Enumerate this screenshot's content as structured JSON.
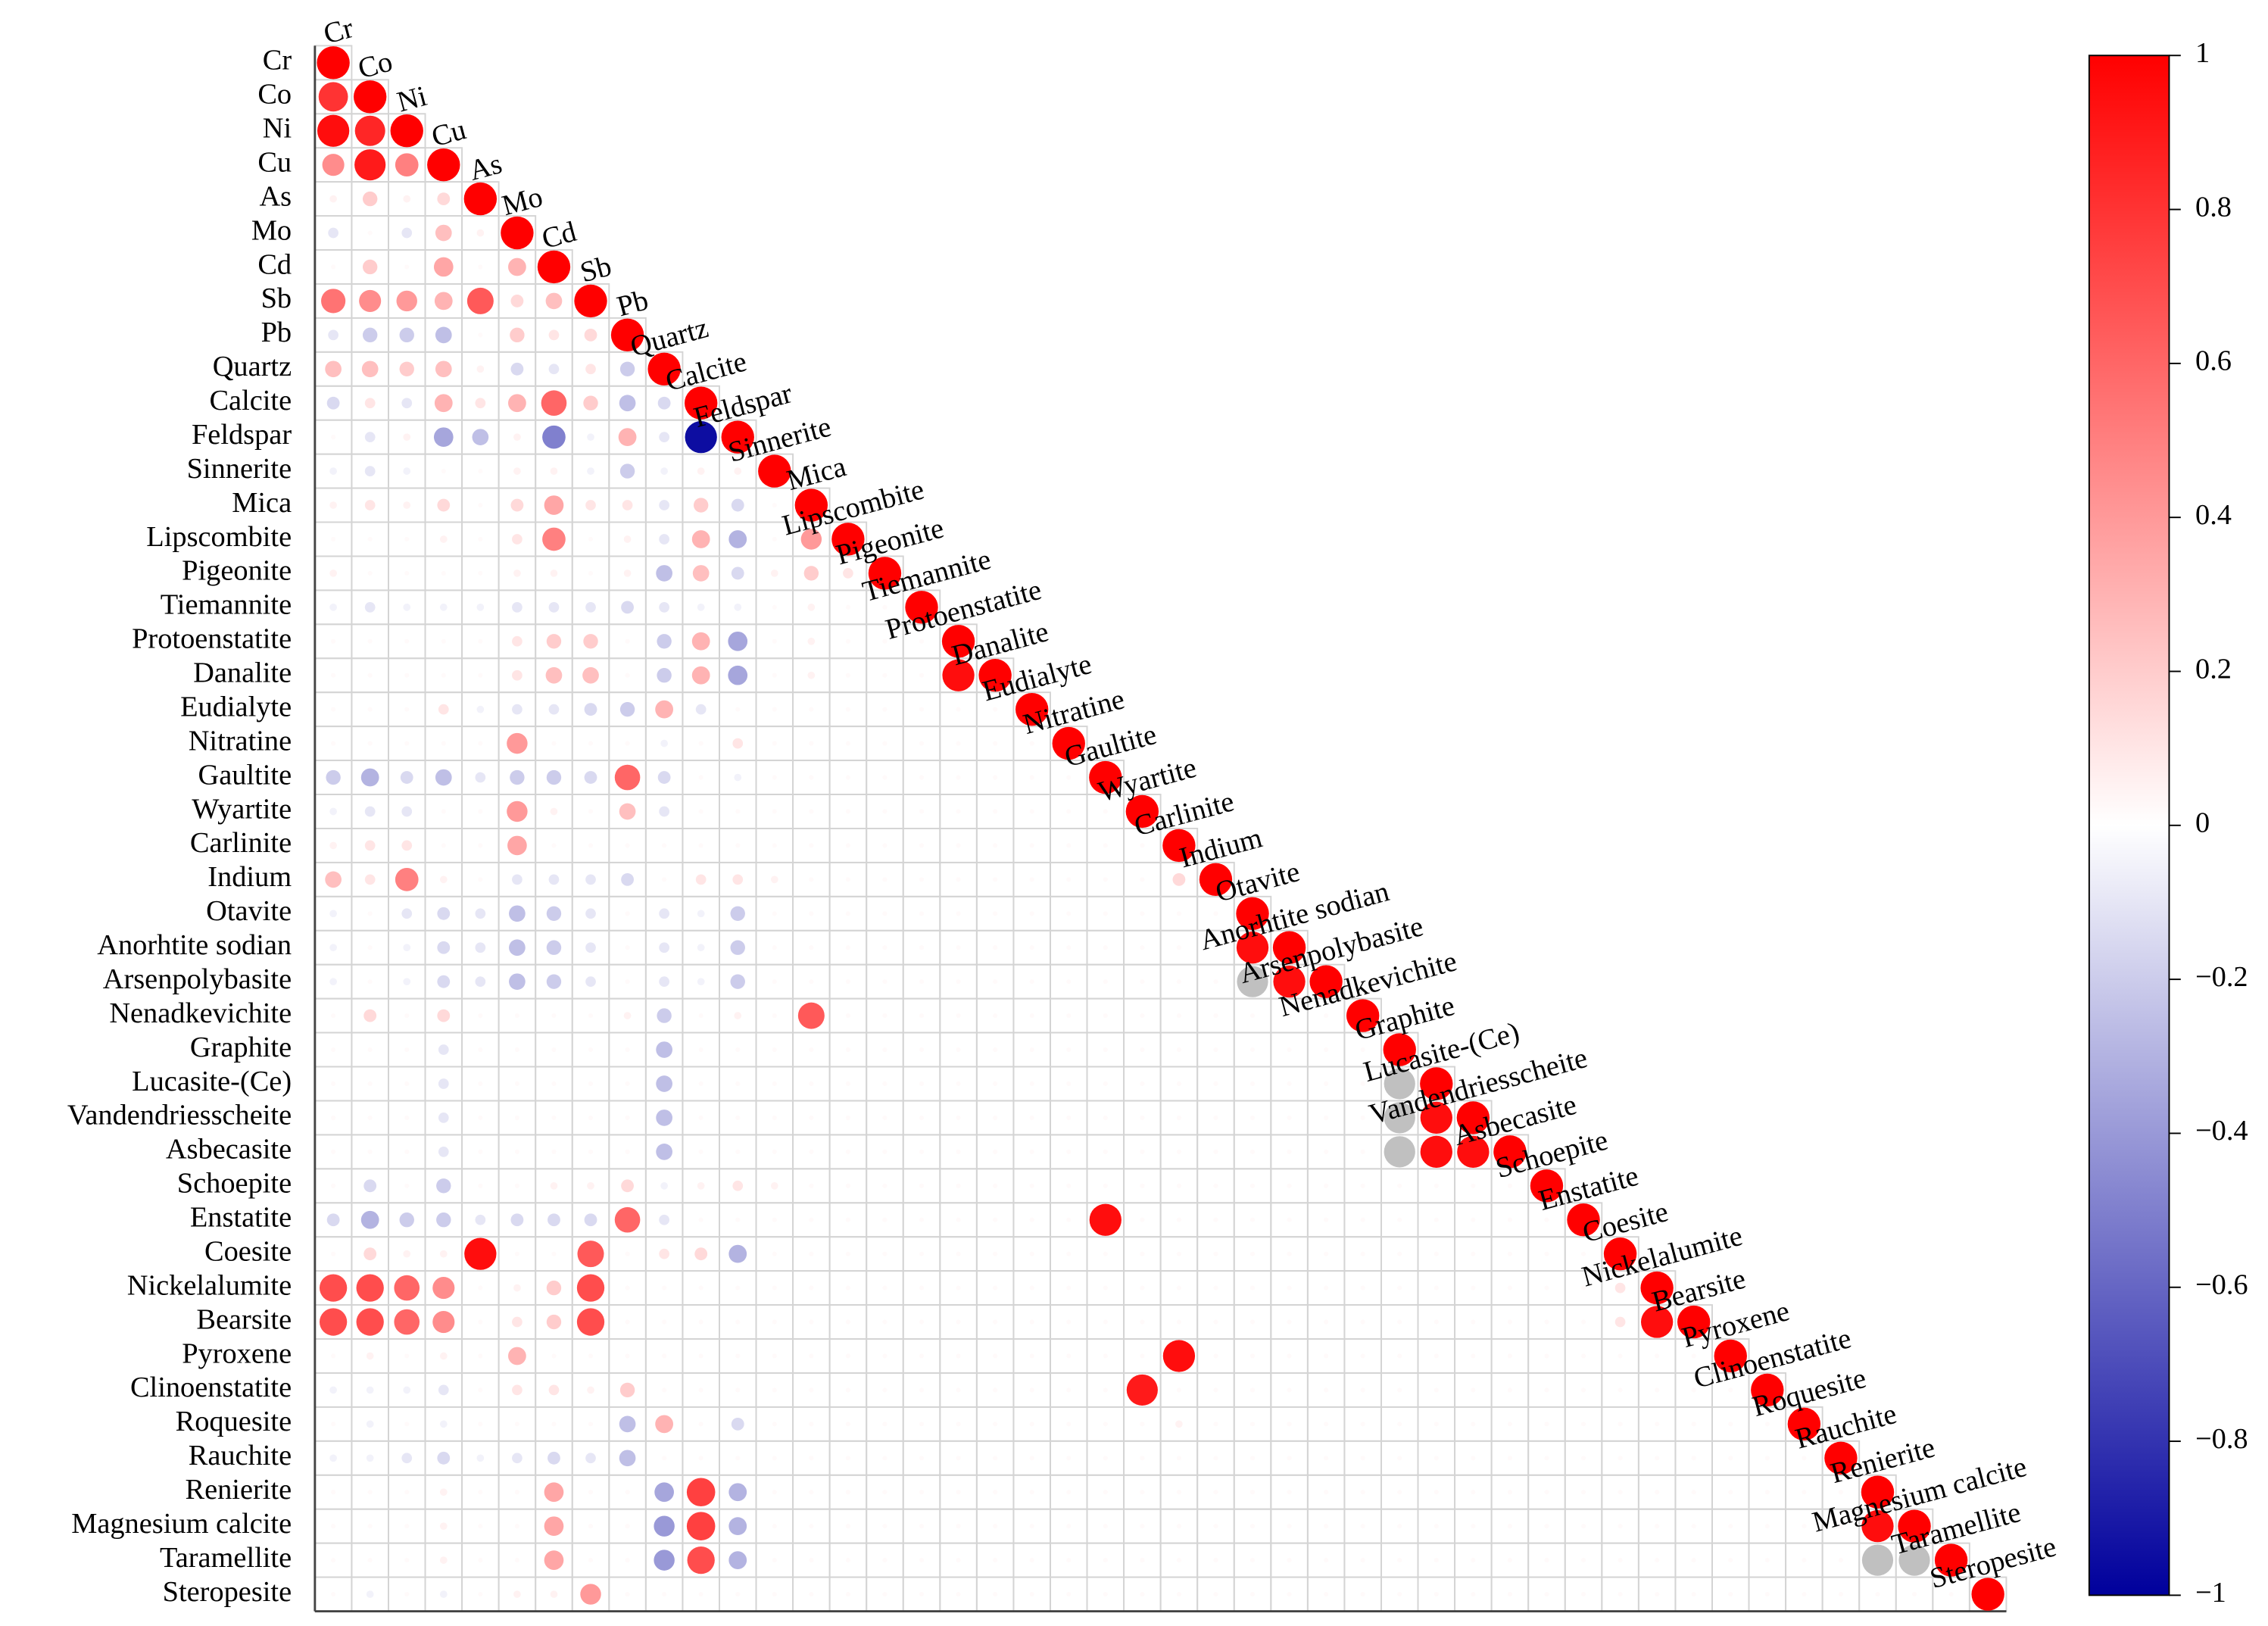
{
  "chart_data": {
    "type": "correlation",
    "variables": [
      "Cr",
      "Co",
      "Ni",
      "Cu",
      "As",
      "Mo",
      "Cd",
      "Sb",
      "Pb",
      "Quartz",
      "Calcite",
      "Feldspar",
      "Sinnerite",
      "Mica",
      "Lipscombite",
      "Pigeonite",
      "Tiemannite",
      "Protoenstatite",
      "Danalite",
      "Eudialyte",
      "Nitratine",
      "Gaultite",
      "Wyartite",
      "Carlinite",
      "Indium",
      "Otavite",
      "Anorhtite sodian",
      "Arsenpolybasite",
      "Nenadkevichite",
      "Graphite",
      "Lucasite-(Ce)",
      "Vandendriesscheite",
      "Asbecasite",
      "Schoepite",
      "Enstatite",
      "Coesite",
      "Nickelalumite",
      "Bearsite",
      "Pyroxene",
      "Clinoenstatite",
      "Roquesite",
      "Rauchite",
      "Renierite",
      "Magnesium calcite",
      "Taramellite",
      "Steropesite"
    ],
    "matrix": [
      [
        1
      ],
      [
        0.8,
        1
      ],
      [
        0.95,
        0.85,
        1
      ],
      [
        0.45,
        0.9,
        0.5,
        1
      ],
      [
        0.05,
        0.2,
        0.05,
        0.15,
        1
      ],
      [
        -0.1,
        0.02,
        -0.1,
        0.25,
        0.05,
        1
      ],
      [
        0.02,
        0.2,
        0.02,
        0.35,
        0.02,
        0.3,
        1
      ],
      [
        0.55,
        0.45,
        0.4,
        0.3,
        0.65,
        0.15,
        0.25,
        1
      ],
      [
        -0.1,
        -0.2,
        -0.2,
        -0.25,
        0.02,
        0.2,
        0.1,
        0.15,
        1
      ],
      [
        0.25,
        0.25,
        0.2,
        0.25,
        0.05,
        -0.15,
        -0.1,
        0.1,
        -0.2,
        1
      ],
      [
        -0.15,
        0.1,
        -0.1,
        0.3,
        0.1,
        0.3,
        0.6,
        0.2,
        -0.25,
        -0.15,
        1
      ],
      [
        0.02,
        -0.1,
        0.05,
        -0.35,
        -0.25,
        0.05,
        -0.5,
        -0.05,
        0.3,
        -0.1,
        -0.95,
        1
      ],
      [
        -0.05,
        -0.1,
        -0.05,
        0.02,
        0.02,
        0.05,
        0.05,
        -0.05,
        -0.2,
        -0.05,
        0.05,
        0.05,
        1
      ],
      [
        0.05,
        0.1,
        0.05,
        0.15,
        0.02,
        0.15,
        0.35,
        0.1,
        0.1,
        -0.1,
        0.2,
        -0.15,
        0.02,
        1
      ],
      [
        0.02,
        0.02,
        0.02,
        0.05,
        0.02,
        0.1,
        0.5,
        0.02,
        0.05,
        -0.1,
        0.3,
        -0.3,
        0.02,
        0.4,
        1
      ],
      [
        0.05,
        0.02,
        0.02,
        0.02,
        0.02,
        0.05,
        0.05,
        0.02,
        0.05,
        -0.25,
        0.25,
        -0.15,
        0.05,
        0.2,
        0.1,
        1
      ],
      [
        -0.05,
        -0.1,
        -0.05,
        -0.05,
        -0.05,
        -0.1,
        -0.1,
        -0.1,
        -0.15,
        -0.1,
        -0.05,
        -0.05,
        0.02,
        0.05,
        0.02,
        0.02,
        1
      ],
      [
        0.02,
        0.02,
        0.02,
        0.02,
        0.02,
        0.1,
        0.2,
        0.2,
        0.02,
        -0.2,
        0.3,
        -0.35,
        0.02,
        0.05,
        0.02,
        0.02,
        0.02,
        1
      ],
      [
        0.02,
        0.02,
        0.02,
        0.02,
        0.02,
        0.1,
        0.25,
        0.25,
        0.02,
        -0.2,
        0.3,
        -0.35,
        0.02,
        0.05,
        0.02,
        0.02,
        0.02,
        0.95,
        1
      ],
      [
        0.02,
        0.02,
        0.02,
        0.1,
        -0.05,
        -0.1,
        -0.1,
        -0.15,
        -0.2,
        0.3,
        -0.1,
        0.02,
        0.02,
        0.02,
        0.02,
        0.02,
        0.02,
        0.02,
        0.02,
        1
      ],
      [
        0.02,
        0.02,
        0.02,
        0.02,
        0.02,
        0.4,
        0.02,
        0.02,
        0.02,
        -0.05,
        0.02,
        0.1,
        0.02,
        0.02,
        0.02,
        0.02,
        0.02,
        0.02,
        0.02,
        0.02,
        1
      ],
      [
        -0.2,
        -0.3,
        -0.15,
        -0.25,
        -0.1,
        -0.2,
        -0.2,
        -0.15,
        0.6,
        -0.15,
        0.02,
        -0.05,
        0.02,
        0.02,
        0.02,
        0.02,
        0.02,
        0.02,
        0.02,
        0.02,
        0.02,
        1
      ],
      [
        -0.05,
        -0.1,
        -0.1,
        0.02,
        0.02,
        0.4,
        0.05,
        0.02,
        0.25,
        -0.1,
        0.02,
        0.02,
        0.02,
        0.02,
        0.02,
        0.02,
        0.02,
        0.02,
        0.02,
        0.02,
        0.02,
        0.02,
        1
      ],
      [
        0.05,
        0.1,
        0.1,
        0.02,
        0.02,
        0.35,
        0.02,
        0.02,
        0.02,
        0.02,
        0.02,
        0.02,
        0.02,
        0.02,
        0.02,
        0.02,
        0.02,
        0.02,
        0.02,
        0.02,
        0.02,
        0.02,
        0.02,
        1
      ],
      [
        0.25,
        0.1,
        0.5,
        0.05,
        0.02,
        -0.1,
        -0.1,
        -0.1,
        -0.15,
        0.02,
        0.1,
        0.1,
        0.05,
        0.02,
        0.02,
        0.02,
        0.02,
        0.02,
        0.02,
        0.02,
        0.02,
        0.02,
        0.02,
        0.15,
        1
      ],
      [
        -0.05,
        0.02,
        -0.1,
        -0.15,
        -0.1,
        -0.25,
        -0.2,
        -0.1,
        0.02,
        -0.1,
        -0.05,
        -0.2,
        0.02,
        0.02,
        0.02,
        0.02,
        0.02,
        0.02,
        0.02,
        0.02,
        0.02,
        0.02,
        0.02,
        0.02,
        0.02,
        1
      ],
      [
        -0.05,
        0.02,
        -0.05,
        -0.15,
        -0.1,
        -0.25,
        -0.2,
        -0.1,
        0.02,
        -0.1,
        -0.05,
        -0.2,
        0.02,
        0.02,
        0.02,
        0.02,
        0.02,
        0.02,
        0.02,
        0.02,
        0.02,
        0.02,
        0.02,
        0.02,
        0.02,
        0.95,
        1
      ],
      [
        -0.05,
        0.02,
        -0.05,
        -0.15,
        -0.1,
        -0.25,
        -0.2,
        -0.1,
        0.02,
        -0.1,
        -0.05,
        -0.2,
        0.02,
        0.02,
        0.02,
        0.02,
        0.02,
        0.02,
        0.02,
        0.02,
        0.02,
        0.02,
        0.02,
        0.02,
        0.02,
        null,
        0.95,
        1
      ],
      [
        0.02,
        0.15,
        0.02,
        0.15,
        0.02,
        0.02,
        0.02,
        0.02,
        0.05,
        -0.2,
        0.02,
        0.05,
        0.02,
        0.65,
        0.02,
        0.02,
        0.02,
        0.02,
        0.02,
        0.02,
        0.02,
        0.02,
        0.02,
        0.02,
        0.02,
        0.02,
        0.02,
        0.02,
        1
      ],
      [
        0.02,
        0.02,
        0.02,
        -0.1,
        0.02,
        0.02,
        0.02,
        0.02,
        0.02,
        -0.25,
        0.02,
        0.02,
        0.02,
        0.02,
        0.02,
        0.02,
        0.02,
        0.02,
        0.02,
        0.02,
        0.02,
        0.02,
        0.02,
        0.02,
        0.02,
        0.02,
        0.02,
        0.02,
        0.02,
        1
      ],
      [
        0.02,
        0.02,
        0.02,
        -0.1,
        0.02,
        0.02,
        0.02,
        0.02,
        0.02,
        -0.25,
        0.02,
        0.02,
        0.02,
        0.02,
        0.02,
        0.02,
        0.02,
        0.02,
        0.02,
        0.02,
        0.02,
        0.02,
        0.02,
        0.02,
        0.02,
        0.02,
        0.02,
        0.02,
        0.02,
        null,
        1
      ],
      [
        0.02,
        0.02,
        0.02,
        -0.1,
        0.02,
        0.02,
        0.02,
        0.02,
        0.02,
        -0.25,
        0.02,
        0.02,
        0.02,
        0.02,
        0.02,
        0.02,
        0.02,
        0.02,
        0.02,
        0.02,
        0.02,
        0.02,
        0.02,
        0.02,
        0.02,
        0.02,
        0.02,
        0.02,
        0.02,
        null,
        0.95,
        1
      ],
      [
        0.02,
        0.02,
        0.02,
        -0.1,
        0.02,
        0.02,
        0.02,
        0.02,
        0.02,
        -0.25,
        0.02,
        0.02,
        0.02,
        0.02,
        0.02,
        0.02,
        0.02,
        0.02,
        0.02,
        0.02,
        0.02,
        0.02,
        0.02,
        0.02,
        0.02,
        0.02,
        0.02,
        0.02,
        0.02,
        null,
        0.95,
        0.95,
        1
      ],
      [
        0.02,
        -0.15,
        0.02,
        -0.2,
        0.02,
        0.02,
        0.05,
        0.05,
        0.15,
        -0.05,
        0.05,
        0.1,
        0.05,
        0.02,
        0.02,
        0.02,
        0.02,
        0.02,
        0.02,
        0.02,
        0.02,
        0.02,
        0.02,
        0.02,
        0.02,
        0.02,
        0.02,
        0.02,
        0.02,
        0.02,
        0.02,
        0.02,
        0.02,
        1
      ],
      [
        -0.15,
        -0.3,
        -0.2,
        -0.2,
        -0.1,
        -0.15,
        -0.15,
        -0.15,
        0.6,
        -0.1,
        0.02,
        0.02,
        0.02,
        0.02,
        0.02,
        0.02,
        0.02,
        0.02,
        0.02,
        0.02,
        0.02,
        0.95,
        0.02,
        0.02,
        0.02,
        0.02,
        0.02,
        0.02,
        0.02,
        0.02,
        0.02,
        0.02,
        0.02,
        0.02,
        1
      ],
      [
        0.02,
        0.15,
        0.05,
        0.05,
        0.95,
        0.02,
        0.02,
        0.65,
        0.02,
        0.1,
        0.15,
        -0.3,
        0.02,
        0.02,
        0.02,
        0.02,
        0.02,
        0.02,
        0.02,
        0.02,
        0.02,
        0.02,
        0.02,
        0.02,
        0.02,
        0.02,
        0.02,
        0.02,
        0.02,
        0.02,
        0.02,
        0.02,
        0.02,
        0.02,
        0.02,
        1
      ],
      [
        0.7,
        0.7,
        0.6,
        0.45,
        0.02,
        0.05,
        0.2,
        0.7,
        0.02,
        0.02,
        0.02,
        0.02,
        0.02,
        0.02,
        0.02,
        0.02,
        0.02,
        0.02,
        0.02,
        0.02,
        0.02,
        0.02,
        0.02,
        0.02,
        0.02,
        0.02,
        0.02,
        0.02,
        0.02,
        0.02,
        0.02,
        0.02,
        0.02,
        0.02,
        0.02,
        0.1,
        1
      ],
      [
        0.7,
        0.7,
        0.6,
        0.45,
        0.02,
        0.1,
        0.2,
        0.7,
        0.02,
        0.02,
        0.02,
        0.02,
        0.02,
        0.02,
        0.02,
        0.02,
        0.02,
        0.02,
        0.02,
        0.02,
        0.02,
        0.02,
        0.02,
        0.02,
        0.02,
        0.02,
        0.02,
        0.02,
        0.02,
        0.02,
        0.02,
        0.02,
        0.02,
        0.02,
        0.02,
        0.1,
        0.95,
        1
      ],
      [
        0.02,
        0.05,
        0.02,
        0.05,
        0.02,
        0.3,
        0.02,
        0.02,
        0.02,
        0.02,
        0.02,
        0.02,
        0.02,
        0.02,
        0.02,
        0.02,
        0.02,
        0.02,
        0.02,
        0.02,
        0.02,
        0.02,
        0.02,
        0.95,
        0.02,
        0.02,
        0.02,
        0.02,
        0.02,
        0.02,
        0.02,
        0.02,
        0.02,
        0.02,
        0.02,
        0.02,
        0.02,
        0.02,
        1
      ],
      [
        -0.05,
        -0.05,
        -0.05,
        -0.1,
        0.02,
        0.1,
        0.1,
        0.05,
        0.2,
        0.02,
        0.02,
        0.02,
        0.02,
        0.02,
        0.02,
        0.02,
        0.02,
        0.02,
        0.02,
        0.02,
        0.02,
        0.02,
        0.9,
        0.02,
        0.02,
        0.02,
        0.02,
        0.02,
        0.02,
        0.02,
        0.02,
        0.02,
        0.02,
        0.02,
        0.02,
        0.02,
        0.02,
        0.02,
        0.02,
        1
      ],
      [
        0.02,
        -0.05,
        0.02,
        -0.05,
        0.02,
        0.02,
        0.02,
        0.02,
        -0.25,
        0.3,
        0.02,
        -0.15,
        0.02,
        0.02,
        0.02,
        0.02,
        0.02,
        0.02,
        0.02,
        0.02,
        0.02,
        0.02,
        0.02,
        0.05,
        0.02,
        0.02,
        0.02,
        0.02,
        0.02,
        0.02,
        0.02,
        0.02,
        0.02,
        0.02,
        0.02,
        0.02,
        0.02,
        0.02,
        0.02,
        0.02,
        1
      ],
      [
        -0.05,
        -0.05,
        -0.1,
        -0.15,
        -0.05,
        -0.1,
        -0.15,
        -0.1,
        -0.25,
        0.02,
        0.02,
        0.02,
        0.02,
        0.02,
        0.02,
        0.02,
        0.02,
        0.02,
        0.02,
        0.02,
        0.02,
        0.02,
        0.02,
        0.02,
        0.02,
        0.02,
        0.02,
        0.02,
        0.02,
        0.02,
        0.02,
        0.02,
        0.02,
        0.02,
        0.02,
        0.02,
        0.02,
        0.02,
        0.02,
        0.02,
        0.02,
        1
      ],
      [
        0.02,
        0.02,
        0.02,
        0.05,
        0.02,
        0.02,
        0.35,
        0.02,
        0.02,
        -0.35,
        0.75,
        -0.3,
        0.02,
        0.02,
        0.02,
        0.02,
        0.02,
        0.02,
        0.02,
        0.02,
        0.02,
        0.02,
        0.02,
        0.02,
        0.02,
        0.02,
        0.02,
        0.02,
        0.02,
        0.02,
        0.02,
        0.02,
        0.02,
        0.02,
        0.02,
        0.02,
        0.02,
        0.02,
        0.02,
        0.02,
        0.02,
        0.02,
        1
      ],
      [
        0.02,
        0.02,
        0.02,
        0.05,
        0.02,
        0.02,
        0.35,
        0.02,
        0.02,
        -0.4,
        0.75,
        -0.3,
        0.02,
        0.02,
        0.02,
        0.02,
        0.02,
        0.02,
        0.02,
        0.02,
        0.02,
        0.02,
        0.02,
        0.02,
        0.02,
        0.02,
        0.02,
        0.02,
        0.02,
        0.02,
        0.02,
        0.02,
        0.02,
        0.02,
        0.02,
        0.02,
        0.02,
        0.02,
        0.02,
        0.02,
        0.02,
        0.02,
        0.95,
        1
      ],
      [
        0.02,
        0.02,
        0.02,
        0.05,
        0.02,
        0.02,
        0.35,
        0.02,
        0.02,
        -0.4,
        0.7,
        -0.3,
        0.02,
        0.02,
        0.02,
        0.02,
        0.02,
        0.02,
        0.02,
        0.02,
        0.02,
        0.02,
        0.02,
        0.02,
        0.02,
        0.02,
        0.02,
        0.02,
        0.02,
        0.02,
        0.02,
        0.02,
        0.02,
        0.02,
        0.02,
        0.02,
        0.02,
        0.02,
        0.02,
        0.02,
        0.02,
        0.02,
        null,
        null,
        1
      ],
      [
        0.02,
        -0.05,
        0.02,
        -0.05,
        0.02,
        0.05,
        0.05,
        0.4,
        0.02,
        0.02,
        0.02,
        0.02,
        0.02,
        0.02,
        0.02,
        0.02,
        0.02,
        0.02,
        0.02,
        0.02,
        0.02,
        0.02,
        0.02,
        0.02,
        0.02,
        0.02,
        0.02,
        0.02,
        0.02,
        0.02,
        0.02,
        0.02,
        0.02,
        0.02,
        0.02,
        0.02,
        0.02,
        0.02,
        0.02,
        0.02,
        0.02,
        0.02,
        0.02,
        0.02,
        0.02,
        1
      ]
    ],
    "colormap": [
      "#00009c",
      "#ffffff",
      "#ff0000"
    ],
    "na_color": "#c0c0c0",
    "clim": [
      -1,
      1
    ],
    "cticks": [
      1,
      0.8,
      0.6,
      0.4,
      0.2,
      0,
      {
        "value": -0.2,
        "label": "−0.2"
      },
      {
        "value": -0.4,
        "label": "−0.4"
      },
      {
        "value": -0.6,
        "label": "−0.6"
      },
      {
        "value": -0.8,
        "label": "−0.8"
      },
      {
        "value": -1,
        "label": "−1"
      }
    ],
    "grid": true
  }
}
